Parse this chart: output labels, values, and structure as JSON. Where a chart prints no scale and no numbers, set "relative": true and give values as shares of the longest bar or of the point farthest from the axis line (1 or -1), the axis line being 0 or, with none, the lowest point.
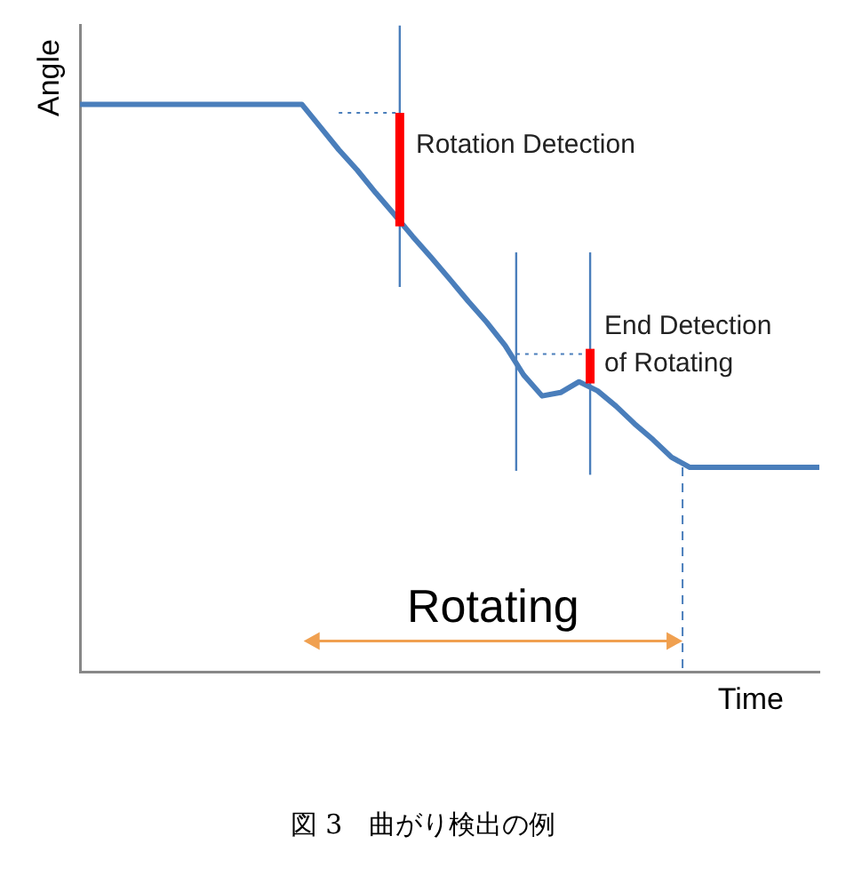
{
  "chart_data": {
    "type": "line",
    "relative": true,
    "xlabel": "Time",
    "ylabel": "Angle",
    "categories": [
      null,
      null,
      null,
      null,
      null,
      null,
      null,
      null,
      null,
      null,
      null,
      null,
      null,
      null,
      null,
      null,
      null,
      null,
      null,
      null,
      null,
      null,
      null,
      null,
      null,
      null,
      null,
      null,
      null,
      null,
      null,
      null,
      null,
      null,
      null,
      null,
      null,
      null,
      null,
      null,
      null
    ],
    "series": [
      {
        "color": "#4a7ebb",
        "values": [
          1,
          1,
          1,
          1,
          1,
          1,
          1,
          1,
          1,
          1,
          1,
          1,
          1,
          0.96,
          0.92,
          0.884,
          0.844,
          0.806,
          0.767,
          0.73,
          0.692,
          0.653,
          0.616,
          0.575,
          0.523,
          0.486,
          0.492,
          0.511,
          0.495,
          0.468,
          0.437,
          0.409,
          0.378,
          0.36,
          0.36,
          0.36,
          0.36,
          0.36,
          0.36,
          0.36,
          0.36
        ]
      }
    ],
    "annotations": [
      "Rotation Detection",
      "End Detection\nof Rotating",
      "Rotating",
      "図 3　曲がり検出の例"
    ]
  }
}
